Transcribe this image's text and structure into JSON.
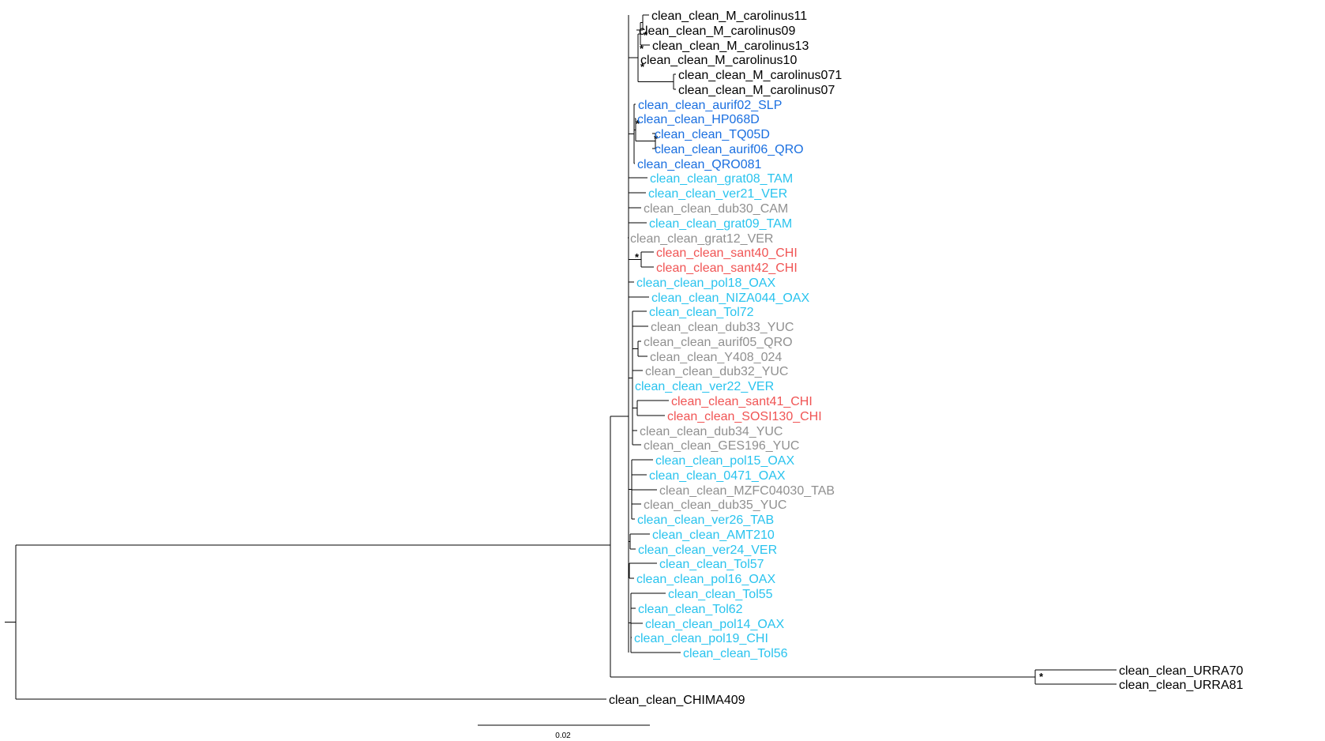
{
  "colors": {
    "black": "#000000",
    "blue": "#1a6fe0",
    "cyan": "#29c3ee",
    "gray": "#909090",
    "red": "#f05454"
  },
  "support_symbol": "*",
  "scale_bar": {
    "label": "0.02"
  },
  "tips": [
    {
      "label": "clean_clean_M_carolinus11",
      "color": "black"
    },
    {
      "label": "clean_clean_M_carolinus09",
      "color": "black"
    },
    {
      "label": "clean_clean_M_carolinus13",
      "color": "black"
    },
    {
      "label": "clean_clean_M_carolinus10",
      "color": "black"
    },
    {
      "label": "clean_clean_M_carolinus071",
      "color": "black"
    },
    {
      "label": "clean_clean_M_carolinus07",
      "color": "black"
    },
    {
      "label": "clean_clean_aurif02_SLP",
      "color": "blue"
    },
    {
      "label": "clean_clean_HP068D",
      "color": "blue"
    },
    {
      "label": "clean_clean_TQ05D",
      "color": "blue"
    },
    {
      "label": "clean_clean_aurif06_QRO",
      "color": "blue"
    },
    {
      "label": "clean_clean_QRO081",
      "color": "blue"
    },
    {
      "label": "clean_clean_grat08_TAM",
      "color": "cyan"
    },
    {
      "label": "clean_clean_ver21_VER",
      "color": "cyan"
    },
    {
      "label": "clean_clean_dub30_CAM",
      "color": "gray"
    },
    {
      "label": "clean_clean_grat09_TAM",
      "color": "cyan"
    },
    {
      "label": "clean_clean_grat12_VER",
      "color": "gray"
    },
    {
      "label": "clean_clean_sant40_CHI",
      "color": "red"
    },
    {
      "label": "clean_clean_sant42_CHI",
      "color": "red"
    },
    {
      "label": "clean_clean_pol18_OAX",
      "color": "cyan"
    },
    {
      "label": "clean_clean_NIZA044_OAX",
      "color": "cyan"
    },
    {
      "label": "clean_clean_Tol72",
      "color": "cyan"
    },
    {
      "label": "clean_clean_dub33_YUC",
      "color": "gray"
    },
    {
      "label": "clean_clean_aurif05_QRO",
      "color": "gray"
    },
    {
      "label": "clean_clean_Y408_024",
      "color": "gray"
    },
    {
      "label": "clean_clean_dub32_YUC",
      "color": "gray"
    },
    {
      "label": "clean_clean_ver22_VER",
      "color": "cyan"
    },
    {
      "label": "clean_clean_sant41_CHI",
      "color": "red"
    },
    {
      "label": "clean_clean_SOSI130_CHI",
      "color": "red"
    },
    {
      "label": "clean_clean_dub34_YUC",
      "color": "gray"
    },
    {
      "label": "clean_clean_GES196_YUC",
      "color": "gray"
    },
    {
      "label": "clean_clean_pol15_OAX",
      "color": "cyan"
    },
    {
      "label": "clean_clean_0471_OAX",
      "color": "cyan"
    },
    {
      "label": "clean_clean_MZFC04030_TAB",
      "color": "gray"
    },
    {
      "label": "clean_clean_dub35_YUC",
      "color": "gray"
    },
    {
      "label": "clean_clean_ver26_TAB",
      "color": "cyan"
    },
    {
      "label": "clean_clean_AMT210",
      "color": "cyan"
    },
    {
      "label": "clean_clean_ver24_VER",
      "color": "cyan"
    },
    {
      "label": "clean_clean_Tol57",
      "color": "cyan"
    },
    {
      "label": "clean_clean_pol16_OAX",
      "color": "cyan"
    },
    {
      "label": "clean_clean_Tol55",
      "color": "cyan"
    },
    {
      "label": "clean_clean_Tol62",
      "color": "cyan"
    },
    {
      "label": "clean_clean_pol14_OAX",
      "color": "cyan"
    },
    {
      "label": "clean_clean_pol19_CHI",
      "color": "cyan"
    },
    {
      "label": "clean_clean_Tol56",
      "color": "cyan"
    },
    {
      "label": "clean_clean_URRA70",
      "color": "black"
    },
    {
      "label": "clean_clean_URRA81",
      "color": "black"
    },
    {
      "label": "clean_clean_CHIMA409",
      "color": "black"
    }
  ]
}
